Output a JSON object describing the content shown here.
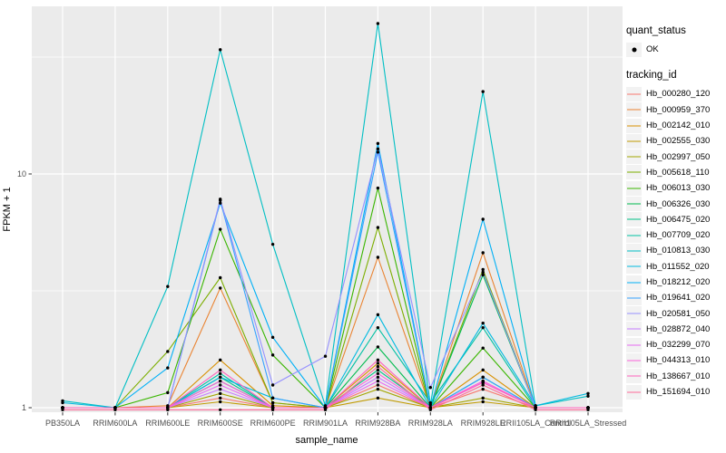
{
  "figure": {
    "panel_bg": "#EBEBEB",
    "grid_color": "#FFFFFF",
    "axis_text_color": "#4D4D4D",
    "point_color": "#000000"
  },
  "legend": {
    "quant_status_title": "quant_status",
    "quant_status_ok_label": "OK",
    "tracking_title": "tracking_id"
  },
  "chart_data": {
    "type": "line",
    "xlabel": "sample_name",
    "ylabel": "FPKM + 1",
    "y_scale": "log10",
    "y_ticks": [
      1,
      10
    ],
    "y_tick_labels": [
      "1",
      "10"
    ],
    "y_minor_ticks": [
      3.162,
      31.62
    ],
    "ylim": [
      0.95,
      52
    ],
    "grid": true,
    "legend_position": "right",
    "point_shape": "filled-circle",
    "categories": [
      "PB350LA",
      "RRIM600LA",
      "RRIM600LE",
      "RRIM600SE",
      "RRIM600PE",
      "RRIM901LA",
      "RRIM928BA",
      "RRIM928LA",
      "RRIM928LE",
      "RRII105LA_Control",
      "RRII105LA_Stressed"
    ],
    "series": [
      {
        "name": "Hb_000280_120",
        "color": "#F8766D",
        "values": [
          1.0,
          1.0,
          1.0,
          1.1,
          1.0,
          1.0,
          1.25,
          1.0,
          1.2,
          1.0,
          1.0
        ]
      },
      {
        "name": "Hb_000959_370",
        "color": "#EA8331",
        "values": [
          1.0,
          1.0,
          1.02,
          3.25,
          1.05,
          1.0,
          4.4,
          1.0,
          4.6,
          1.0,
          1.0
        ]
      },
      {
        "name": "Hb_002142_010",
        "color": "#D89000",
        "values": [
          1.0,
          1.0,
          1.0,
          1.6,
          1.02,
          1.0,
          1.55,
          1.0,
          1.45,
          1.0,
          1.0
        ]
      },
      {
        "name": "Hb_002555_030",
        "color": "#C09B00",
        "values": [
          1.0,
          1.0,
          1.0,
          1.06,
          1.0,
          1.0,
          1.1,
          1.0,
          1.06,
          1.0,
          1.0
        ]
      },
      {
        "name": "Hb_002997_050",
        "color": "#A3A500",
        "values": [
          1.0,
          1.0,
          1.0,
          1.15,
          1.0,
          1.0,
          1.2,
          1.0,
          1.1,
          1.0,
          1.0
        ]
      },
      {
        "name": "Hb_005618_110",
        "color": "#7CAE00",
        "values": [
          1.0,
          1.0,
          1.74,
          3.6,
          1.05,
          1.0,
          5.9,
          1.0,
          3.9,
          1.0,
          1.0
        ]
      },
      {
        "name": "Hb_006013_030",
        "color": "#39B600",
        "values": [
          1.0,
          1.0,
          1.16,
          5.8,
          1.68,
          1.0,
          8.7,
          1.0,
          1.8,
          1.0,
          1.0
        ]
      },
      {
        "name": "Hb_006326_030",
        "color": "#00BB4E",
        "values": [
          1.0,
          1.0,
          1.0,
          1.3,
          1.0,
          1.0,
          1.82,
          1.0,
          3.7,
          1.0,
          1.0
        ]
      },
      {
        "name": "Hb_006475_020",
        "color": "#00C087",
        "values": [
          1.0,
          1.0,
          1.0,
          1.35,
          1.0,
          1.0,
          1.45,
          1.0,
          1.35,
          1.0,
          1.0
        ]
      },
      {
        "name": "Hb_007709_020",
        "color": "#00C1A3",
        "values": [
          1.0,
          1.0,
          1.0,
          1.4,
          1.0,
          1.0,
          2.2,
          1.05,
          2.2,
          1.0,
          1.0
        ]
      },
      {
        "name": "Hb_010813_030",
        "color": "#00BFC4",
        "values": [
          1.07,
          1.0,
          3.3,
          34.0,
          5.0,
          1.02,
          44.0,
          1.03,
          22.5,
          1.02,
          1.12
        ]
      },
      {
        "name": "Hb_011552_020",
        "color": "#00BAE0",
        "values": [
          1.05,
          1.0,
          1.0,
          1.35,
          1.1,
          1.0,
          2.5,
          1.0,
          2.3,
          1.02,
          1.15
        ]
      },
      {
        "name": "Hb_018212_020",
        "color": "#00B0F6",
        "values": [
          1.0,
          1.0,
          1.48,
          7.5,
          2.0,
          1.0,
          13.5,
          1.0,
          6.4,
          1.0,
          1.0
        ]
      },
      {
        "name": "Hb_019641_020",
        "color": "#35A2FF",
        "values": [
          1.0,
          1.0,
          1.0,
          7.7,
          1.1,
          1.0,
          12.4,
          1.0,
          1.35,
          1.0,
          1.0
        ]
      },
      {
        "name": "Hb_020581_050",
        "color": "#9590FF",
        "values": [
          1.0,
          1.0,
          1.0,
          7.8,
          1.25,
          1.66,
          12.8,
          1.22,
          3.8,
          1.0,
          1.0
        ]
      },
      {
        "name": "Hb_028872_040",
        "color": "#C77CFF",
        "values": [
          1.0,
          1.0,
          1.0,
          1.2,
          1.0,
          1.0,
          1.35,
          1.0,
          1.3,
          1.0,
          1.0
        ]
      },
      {
        "name": "Hb_032299_070",
        "color": "#E76BF3",
        "values": [
          1.0,
          1.0,
          1.0,
          1.25,
          1.0,
          1.0,
          1.3,
          1.0,
          1.28,
          1.0,
          1.0
        ]
      },
      {
        "name": "Hb_044313_010",
        "color": "#FA62DB",
        "values": [
          1.0,
          1.0,
          1.0,
          1.3,
          1.0,
          1.0,
          1.4,
          1.0,
          1.3,
          1.0,
          1.0
        ]
      },
      {
        "name": "Hb_138667_010",
        "color": "#FF62BC",
        "values": [
          1.0,
          1.0,
          1.0,
          1.45,
          1.0,
          1.0,
          1.6,
          1.0,
          1.28,
          1.0,
          1.0
        ]
      },
      {
        "name": "Hb_151694_010",
        "color": "#FF6A98",
        "values": [
          0.98,
          0.98,
          0.98,
          0.98,
          0.98,
          0.98,
          1.5,
          0.98,
          1.25,
          0.98,
          0.98
        ]
      }
    ]
  }
}
